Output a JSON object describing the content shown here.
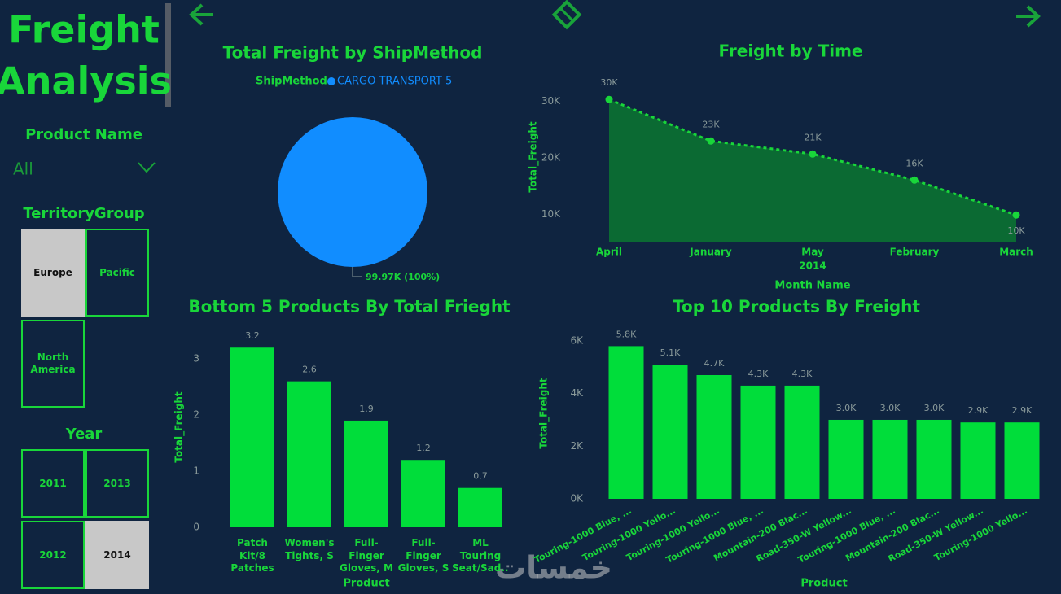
{
  "header": {
    "title_lines": [
      "Freight",
      "Analysis"
    ]
  },
  "filters": {
    "product": {
      "label": "Product Name",
      "value": "All"
    },
    "territory": {
      "label": "TerritoryGroup",
      "options": [
        {
          "label": "Europe",
          "selected": true
        },
        {
          "label": "Pacific",
          "selected": false
        },
        {
          "label": "North America",
          "selected": false
        }
      ]
    },
    "year": {
      "label": "Year",
      "options": [
        {
          "label": "2011",
          "selected": false
        },
        {
          "label": "2013",
          "selected": false
        },
        {
          "label": "2012",
          "selected": false
        },
        {
          "label": "2014",
          "selected": true
        }
      ]
    }
  },
  "watermark": "خمسات",
  "chart_data": [
    {
      "type": "pie",
      "title": "Total Freight by ShipMethod",
      "legend_title": "ShipMethod",
      "categories": [
        "CARGO TRANSPORT 5"
      ],
      "values": [
        99970
      ],
      "value_labels": [
        "99.97K (100%)"
      ],
      "colors": [
        "#118dff"
      ]
    },
    {
      "type": "area",
      "title": "Freight by Time",
      "categories": [
        "April",
        "January",
        "May",
        "February",
        "March"
      ],
      "x_group_label": "2014",
      "values": [
        30300,
        22950,
        20650,
        16040,
        9860
      ],
      "value_labels": [
        "30K",
        "23K",
        "21K",
        "16K",
        "10K"
      ],
      "color": "#19d63a",
      "fill_color": "#0b6a33",
      "x_label": "Month Name",
      "y_label": "Total_Freight",
      "ylim": [
        5000,
        34000
      ],
      "yticks": [
        {
          "value": 10000,
          "label": "10K"
        },
        {
          "value": 20000,
          "label": "20K"
        },
        {
          "value": 30000,
          "label": "30K"
        }
      ]
    },
    {
      "type": "bar",
      "title": "Bottom 5 Products By Total Frieght",
      "categories": [
        "Patch Kit/8 Patches",
        "Women's Tights, S",
        "Full-Finger Gloves, M",
        "Full-Finger Gloves, S",
        "ML Touring Seat/Sad..."
      ],
      "values": [
        3.2,
        2.6,
        1.9,
        1.2,
        0.7
      ],
      "color": "#00dd3a",
      "x_label": "Product",
      "y_label": "Total_Freight",
      "ylim": [
        0,
        3.45
      ],
      "yticks": [
        0,
        1,
        2,
        3
      ]
    },
    {
      "type": "bar",
      "title": "Top 10 Products By Freight",
      "categories": [
        "Touring-1000 Blue, ...",
        "Touring-1000 Yello...",
        "Touring-1000 Yello...",
        "Touring-1000 Blue, ...",
        "Mountain-200 Blac...",
        "Road-350-W Yellow...",
        "Touring-1000 Blue, ...",
        "Mountain-200 Blac...",
        "Road-350-W Yellow...",
        "Touring-1000 Yello..."
      ],
      "values": [
        5800,
        5100,
        4700,
        4300,
        4300,
        3000,
        3000,
        3000,
        2900,
        2900
      ],
      "value_labels": [
        "5.8K",
        "5.1K",
        "4.7K",
        "4.3K",
        "4.3K",
        "3.0K",
        "3.0K",
        "3.0K",
        "2.9K",
        "2.9K"
      ],
      "color": "#00dd3a",
      "x_label": "Product",
      "y_label": "Total_Freight",
      "ylim": [
        0,
        6400
      ],
      "yticks": [
        {
          "value": 0,
          "label": "0K"
        },
        {
          "value": 2000,
          "label": "2K"
        },
        {
          "value": 4000,
          "label": "4K"
        },
        {
          "value": 6000,
          "label": "6K"
        }
      ]
    }
  ]
}
